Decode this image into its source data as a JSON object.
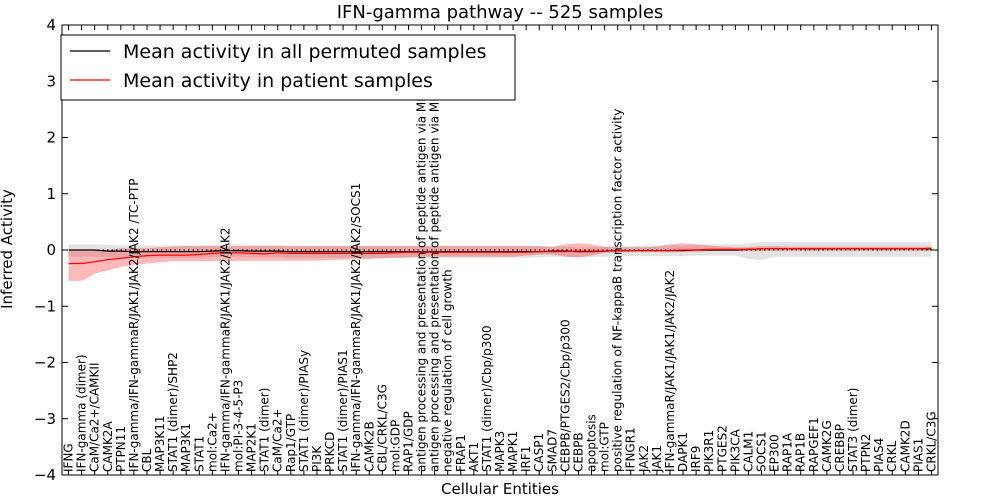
{
  "chart_data": {
    "type": "line",
    "title": "IFN-gamma pathway -- 525 samples",
    "xlabel": "Cellular Entities",
    "ylabel": "Inferred Activity",
    "ylim": [
      -4,
      4
    ],
    "yticks": [
      -4,
      -3,
      -2,
      -1,
      0,
      1,
      2,
      3,
      4
    ],
    "grid": false,
    "legend_position": "top-left",
    "categories": [
      "IFNG",
      "IFN-gamma (dimer)",
      "CaM/Ca2+/CAMKII",
      "CAMK2A",
      "PTPN11",
      "IFN-gamma/IFN-gammaR/JAK1/JAK2/JAK2 /TC-PTP",
      "CBL",
      "MAP3K11",
      "STAT1 (dimer)/SHP2",
      "MAP3K1",
      "STAT1",
      "mol:Ca2+",
      "IFN-gamma/IFN-gammaR/JAK1/JAK2/JAK2",
      "mol:PI-3-4-5-P3",
      "MAP2K1",
      "STAT1 (dimer)",
      "CaM/Ca2+",
      "Rap1/GTP",
      "STAT1 (dimer)/PIASy",
      "PI3K",
      "PRKCD",
      "STAT1 (dimer)/PIAS1",
      "IFN-gamma/IFN-gammaR/JAK1/JAK2/JAK2/SOCS1",
      "CAMK2B",
      "CBL/CRKL/C3G",
      "mol:GDP",
      "RAP1/GDP",
      "antigen processing and presentation of peptide antigen via MHC class I",
      "antigen processing and presentation of peptide antigen via MHC class II",
      "negative regulation of cell growth",
      "FRAP1",
      "AKT1",
      "STAT1 (dimer)/Cbp/p300",
      "MAPK3",
      "MAPK1",
      "IRF1",
      "CASP1",
      "SMAD7",
      "CEBPB/PTGES2/Cbp/p300",
      "CEBPB",
      "apoptosis",
      "mol:GTP",
      "positive regulation of NF-kappaB transcription factor activity",
      "IFNGR1",
      "JAK2",
      "JAK1",
      "IFN-gammaR/JAK1/JAK1/JAK2/JAK2",
      "DAPK1",
      "IRF9",
      "PIK3R1",
      "PTGES2",
      "PIK3CA",
      "CALM1",
      "SOCS1",
      "EP300",
      "RAP1A",
      "RAP1B",
      "RAPGEF1",
      "CAMK2G",
      "CREBBP",
      "STAT3 (dimer)",
      "PTPN2",
      "PIAS4",
      "CRKL",
      "CAMK2D",
      "PIAS1",
      "CRKL/C3G"
    ],
    "series": [
      {
        "name": "Mean activity in all permuted samples",
        "color": "#000000",
        "values": [
          0.0,
          0.0,
          0.0,
          -0.02,
          -0.02,
          -0.03,
          -0.03,
          -0.03,
          -0.03,
          -0.03,
          -0.03,
          -0.02,
          -0.01,
          -0.01,
          -0.02,
          -0.02,
          -0.02,
          -0.03,
          -0.03,
          -0.03,
          -0.03,
          -0.03,
          -0.03,
          -0.03,
          -0.03,
          -0.03,
          -0.03,
          -0.03,
          -0.03,
          -0.03,
          -0.03,
          -0.03,
          -0.03,
          -0.03,
          -0.03,
          -0.03,
          -0.03,
          -0.02,
          -0.02,
          -0.03,
          -0.03,
          -0.02,
          -0.01,
          -0.01,
          -0.01,
          -0.01,
          -0.01,
          -0.01,
          0.0,
          0.0,
          0.0,
          0.0,
          0.01,
          0.02,
          0.02,
          0.02,
          0.02,
          0.02,
          0.02,
          0.02,
          0.02,
          0.02,
          0.02,
          0.02,
          0.02,
          0.02,
          0.02
        ],
        "lower": [
          -0.12,
          -0.12,
          -0.12,
          -0.13,
          -0.14,
          -0.14,
          -0.14,
          -0.14,
          -0.14,
          -0.14,
          -0.14,
          -0.13,
          -0.12,
          -0.12,
          -0.13,
          -0.13,
          -0.13,
          -0.14,
          -0.14,
          -0.14,
          -0.14,
          -0.14,
          -0.14,
          -0.14,
          -0.14,
          -0.14,
          -0.14,
          -0.14,
          -0.14,
          -0.14,
          -0.14,
          -0.14,
          -0.14,
          -0.14,
          -0.14,
          -0.14,
          -0.13,
          -0.12,
          -0.12,
          -0.13,
          -0.13,
          -0.12,
          -0.11,
          -0.11,
          -0.11,
          -0.11,
          -0.11,
          -0.11,
          -0.1,
          -0.1,
          -0.1,
          -0.1,
          -0.16,
          -0.18,
          -0.12,
          -0.12,
          -0.12,
          -0.12,
          -0.12,
          -0.12,
          -0.12,
          -0.12,
          -0.12,
          -0.12,
          -0.12,
          -0.12,
          -0.12
        ],
        "upper": [
          0.1,
          0.1,
          0.1,
          0.09,
          0.08,
          0.08,
          0.08,
          0.08,
          0.08,
          0.08,
          0.08,
          0.09,
          0.1,
          0.1,
          0.09,
          0.09,
          0.09,
          0.08,
          0.08,
          0.08,
          0.08,
          0.08,
          0.08,
          0.08,
          0.08,
          0.08,
          0.08,
          0.08,
          0.08,
          0.08,
          0.08,
          0.08,
          0.08,
          0.08,
          0.08,
          0.08,
          0.07,
          0.06,
          0.06,
          0.05,
          0.05,
          0.06,
          0.07,
          0.07,
          0.08,
          0.08,
          0.08,
          0.08,
          0.09,
          0.1,
          0.1,
          0.1,
          0.12,
          0.14,
          0.14,
          0.14,
          0.14,
          0.14,
          0.14,
          0.14,
          0.14,
          0.14,
          0.14,
          0.14,
          0.14,
          0.14,
          0.14
        ]
      },
      {
        "name": "Mean activity in patient samples",
        "color": "#ff0000",
        "values": [
          -0.24,
          -0.24,
          -0.21,
          -0.17,
          -0.15,
          -0.12,
          -0.1,
          -0.09,
          -0.09,
          -0.09,
          -0.08,
          -0.06,
          -0.05,
          -0.05,
          -0.06,
          -0.07,
          -0.05,
          -0.06,
          -0.06,
          -0.06,
          -0.06,
          -0.06,
          -0.06,
          -0.06,
          -0.06,
          -0.05,
          -0.04,
          -0.04,
          -0.04,
          -0.04,
          -0.04,
          -0.04,
          -0.04,
          -0.04,
          -0.04,
          -0.04,
          -0.03,
          -0.03,
          -0.03,
          -0.02,
          -0.02,
          -0.02,
          -0.01,
          -0.01,
          -0.01,
          -0.01,
          -0.01,
          0.0,
          0.0,
          0.01,
          0.01,
          0.01,
          0.01,
          0.02,
          0.02,
          0.02,
          0.02,
          0.02,
          0.02,
          0.02,
          0.02,
          0.02,
          0.02,
          0.02,
          0.02,
          0.02,
          0.03
        ],
        "lower": [
          -0.55,
          -0.55,
          -0.42,
          -0.36,
          -0.3,
          -0.26,
          -0.24,
          -0.22,
          -0.2,
          -0.2,
          -0.2,
          -0.2,
          -0.2,
          -0.19,
          -0.19,
          -0.19,
          -0.19,
          -0.19,
          -0.19,
          -0.19,
          -0.18,
          -0.17,
          -0.16,
          -0.16,
          -0.15,
          -0.14,
          -0.13,
          -0.12,
          -0.12,
          -0.12,
          -0.12,
          -0.12,
          -0.12,
          -0.12,
          -0.12,
          -0.1,
          -0.08,
          -0.08,
          -0.12,
          -0.13,
          -0.1,
          -0.05,
          -0.04,
          -0.03,
          -0.03,
          -0.03,
          -0.03,
          -0.03,
          -0.03,
          -0.02,
          -0.02,
          -0.02,
          -0.02,
          -0.02,
          -0.01,
          -0.01,
          -0.01,
          -0.01,
          -0.01,
          -0.01,
          -0.01,
          -0.01,
          -0.01,
          -0.01,
          -0.01,
          -0.01,
          -0.01
        ],
        "upper": [
          0.0,
          0.0,
          0.0,
          0.0,
          0.03,
          0.03,
          0.03,
          0.05,
          0.06,
          0.07,
          0.07,
          0.07,
          0.07,
          0.07,
          0.07,
          0.07,
          0.07,
          0.07,
          0.07,
          0.07,
          0.07,
          0.07,
          0.07,
          0.07,
          0.07,
          0.07,
          0.07,
          0.07,
          0.07,
          0.07,
          0.07,
          0.07,
          0.07,
          0.07,
          0.07,
          0.07,
          0.07,
          0.06,
          0.1,
          0.12,
          0.1,
          0.06,
          0.05,
          0.05,
          0.05,
          0.06,
          0.1,
          0.12,
          0.1,
          0.08,
          0.06,
          0.05,
          0.05,
          0.07,
          0.07,
          0.06,
          0.06,
          0.06,
          0.06,
          0.06,
          0.06,
          0.06,
          0.06,
          0.06,
          0.06,
          0.06,
          0.06
        ]
      }
    ],
    "zero_reference_line": true
  }
}
